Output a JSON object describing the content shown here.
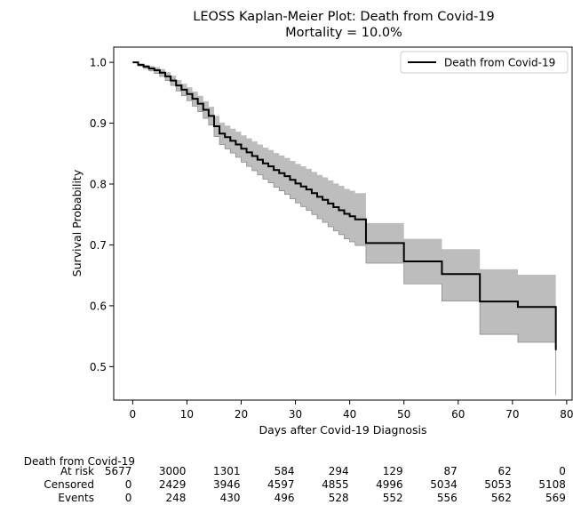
{
  "chart_data": {
    "type": "line",
    "title": "LEOSS Kaplan-Meier Plot: Death from Covid-19",
    "subtitle": "Mortality =  10.0%",
    "xlabel": "Days after Covid-19 Diagnosis",
    "ylabel": "Survival Probability",
    "xlim": [
      -3.5,
      81
    ],
    "ylim": [
      0.445,
      1.025
    ],
    "xticks": [
      0,
      10,
      20,
      30,
      40,
      50,
      60,
      70,
      80
    ],
    "yticks": [
      0.5,
      0.6,
      0.7,
      0.8,
      0.9,
      1.0
    ],
    "xtick_labels": [
      "0",
      "10",
      "20",
      "30",
      "40",
      "50",
      "60",
      "70",
      "80"
    ],
    "ytick_labels": [
      "0.5",
      "0.6",
      "0.7",
      "0.8",
      "0.9",
      "1.0"
    ],
    "legend": {
      "position": "top-right",
      "entries": [
        "Death from Covid-19"
      ]
    },
    "grid": false,
    "colors": {
      "line": "#000000",
      "ci_band": "#bdbdbd"
    },
    "series": [
      {
        "name": "Death from Covid-19",
        "x": [
          0,
          1,
          2,
          3,
          4,
          5,
          6,
          7,
          8,
          9,
          10,
          11,
          12,
          13,
          14,
          15,
          16,
          17,
          18,
          19,
          20,
          21,
          22,
          23,
          24,
          25,
          26,
          27,
          28,
          29,
          30,
          31,
          32,
          33,
          34,
          35,
          36,
          37,
          38,
          39,
          40,
          41,
          43,
          50,
          57,
          64,
          71,
          78
        ],
        "y": [
          1.0,
          0.996,
          0.993,
          0.99,
          0.987,
          0.983,
          0.977,
          0.97,
          0.962,
          0.955,
          0.948,
          0.94,
          0.932,
          0.922,
          0.912,
          0.895,
          0.883,
          0.877,
          0.871,
          0.865,
          0.858,
          0.852,
          0.846,
          0.84,
          0.834,
          0.829,
          0.823,
          0.818,
          0.813,
          0.807,
          0.801,
          0.796,
          0.791,
          0.785,
          0.779,
          0.774,
          0.768,
          0.762,
          0.757,
          0.751,
          0.747,
          0.742,
          0.703,
          0.673,
          0.652,
          0.607,
          0.598,
          0.527
        ],
        "ci_lower": [
          1.0,
          0.994,
          0.99,
          0.986,
          0.982,
          0.977,
          0.97,
          0.962,
          0.953,
          0.945,
          0.937,
          0.928,
          0.919,
          0.908,
          0.897,
          0.878,
          0.865,
          0.858,
          0.851,
          0.844,
          0.836,
          0.829,
          0.822,
          0.815,
          0.808,
          0.802,
          0.795,
          0.789,
          0.783,
          0.776,
          0.769,
          0.763,
          0.757,
          0.75,
          0.743,
          0.737,
          0.73,
          0.723,
          0.717,
          0.71,
          0.705,
          0.699,
          0.67,
          0.636,
          0.608,
          0.553,
          0.54,
          0.453
        ],
        "ci_upper": [
          1.0,
          0.998,
          0.996,
          0.994,
          0.992,
          0.989,
          0.984,
          0.978,
          0.971,
          0.965,
          0.959,
          0.952,
          0.945,
          0.936,
          0.927,
          0.912,
          0.901,
          0.896,
          0.891,
          0.886,
          0.88,
          0.875,
          0.87,
          0.865,
          0.86,
          0.856,
          0.851,
          0.847,
          0.843,
          0.838,
          0.833,
          0.829,
          0.825,
          0.82,
          0.815,
          0.811,
          0.806,
          0.801,
          0.797,
          0.792,
          0.789,
          0.785,
          0.736,
          0.71,
          0.693,
          0.66,
          0.651,
          0.6
        ]
      }
    ]
  },
  "at_risk_table": {
    "group_label": "Death from Covid-19",
    "timepoints": [
      0,
      10,
      20,
      30,
      40,
      50,
      60,
      70,
      80
    ],
    "rows": [
      {
        "label": "At risk",
        "values": [
          "5677",
          "3000",
          "1301",
          "584",
          "294",
          "129",
          "87",
          "62",
          "0"
        ]
      },
      {
        "label": "Censored",
        "values": [
          "0",
          "2429",
          "3946",
          "4597",
          "4855",
          "4996",
          "5034",
          "5053",
          "5108"
        ]
      },
      {
        "label": "Events",
        "values": [
          "0",
          "248",
          "430",
          "496",
          "528",
          "552",
          "556",
          "562",
          "569"
        ]
      }
    ]
  }
}
